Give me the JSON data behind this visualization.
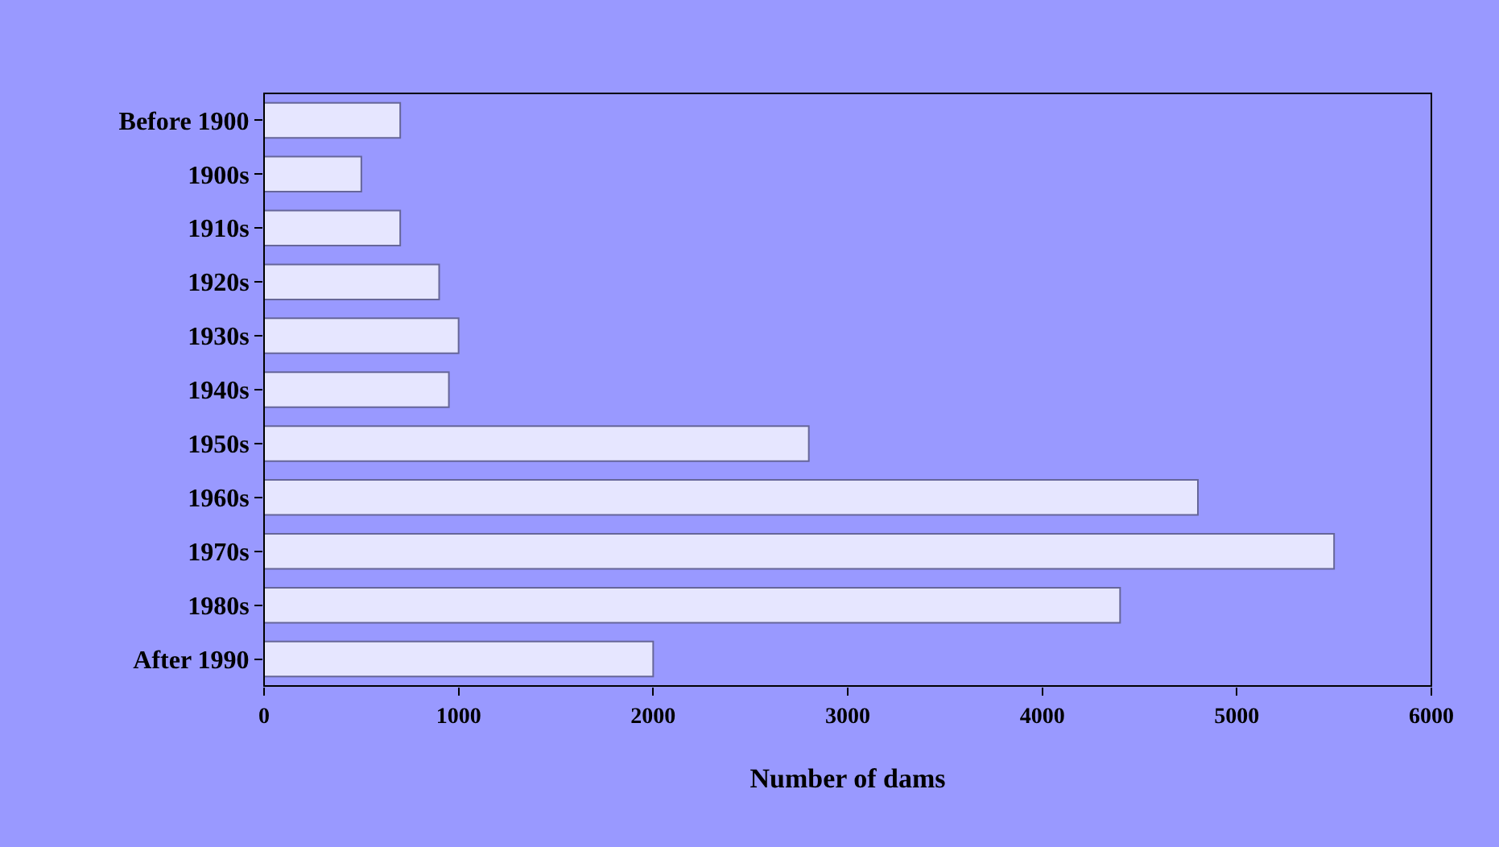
{
  "chart_data": {
    "type": "bar",
    "orientation": "horizontal",
    "xlabel": "Number of dams",
    "categories": [
      "Before 1900",
      "1900s",
      "1910s",
      "1920s",
      "1930s",
      "1940s",
      "1950s",
      "1960s",
      "1970s",
      "1980s",
      "After 1990"
    ],
    "values": [
      700,
      500,
      700,
      900,
      1000,
      950,
      2800,
      4800,
      5500,
      4400,
      2000
    ],
    "color": "#e6e6ff",
    "xlim": [
      0,
      6000
    ],
    "xticks": [
      0,
      1000,
      2000,
      3000,
      4000,
      5000,
      6000
    ],
    "grid": false
  }
}
